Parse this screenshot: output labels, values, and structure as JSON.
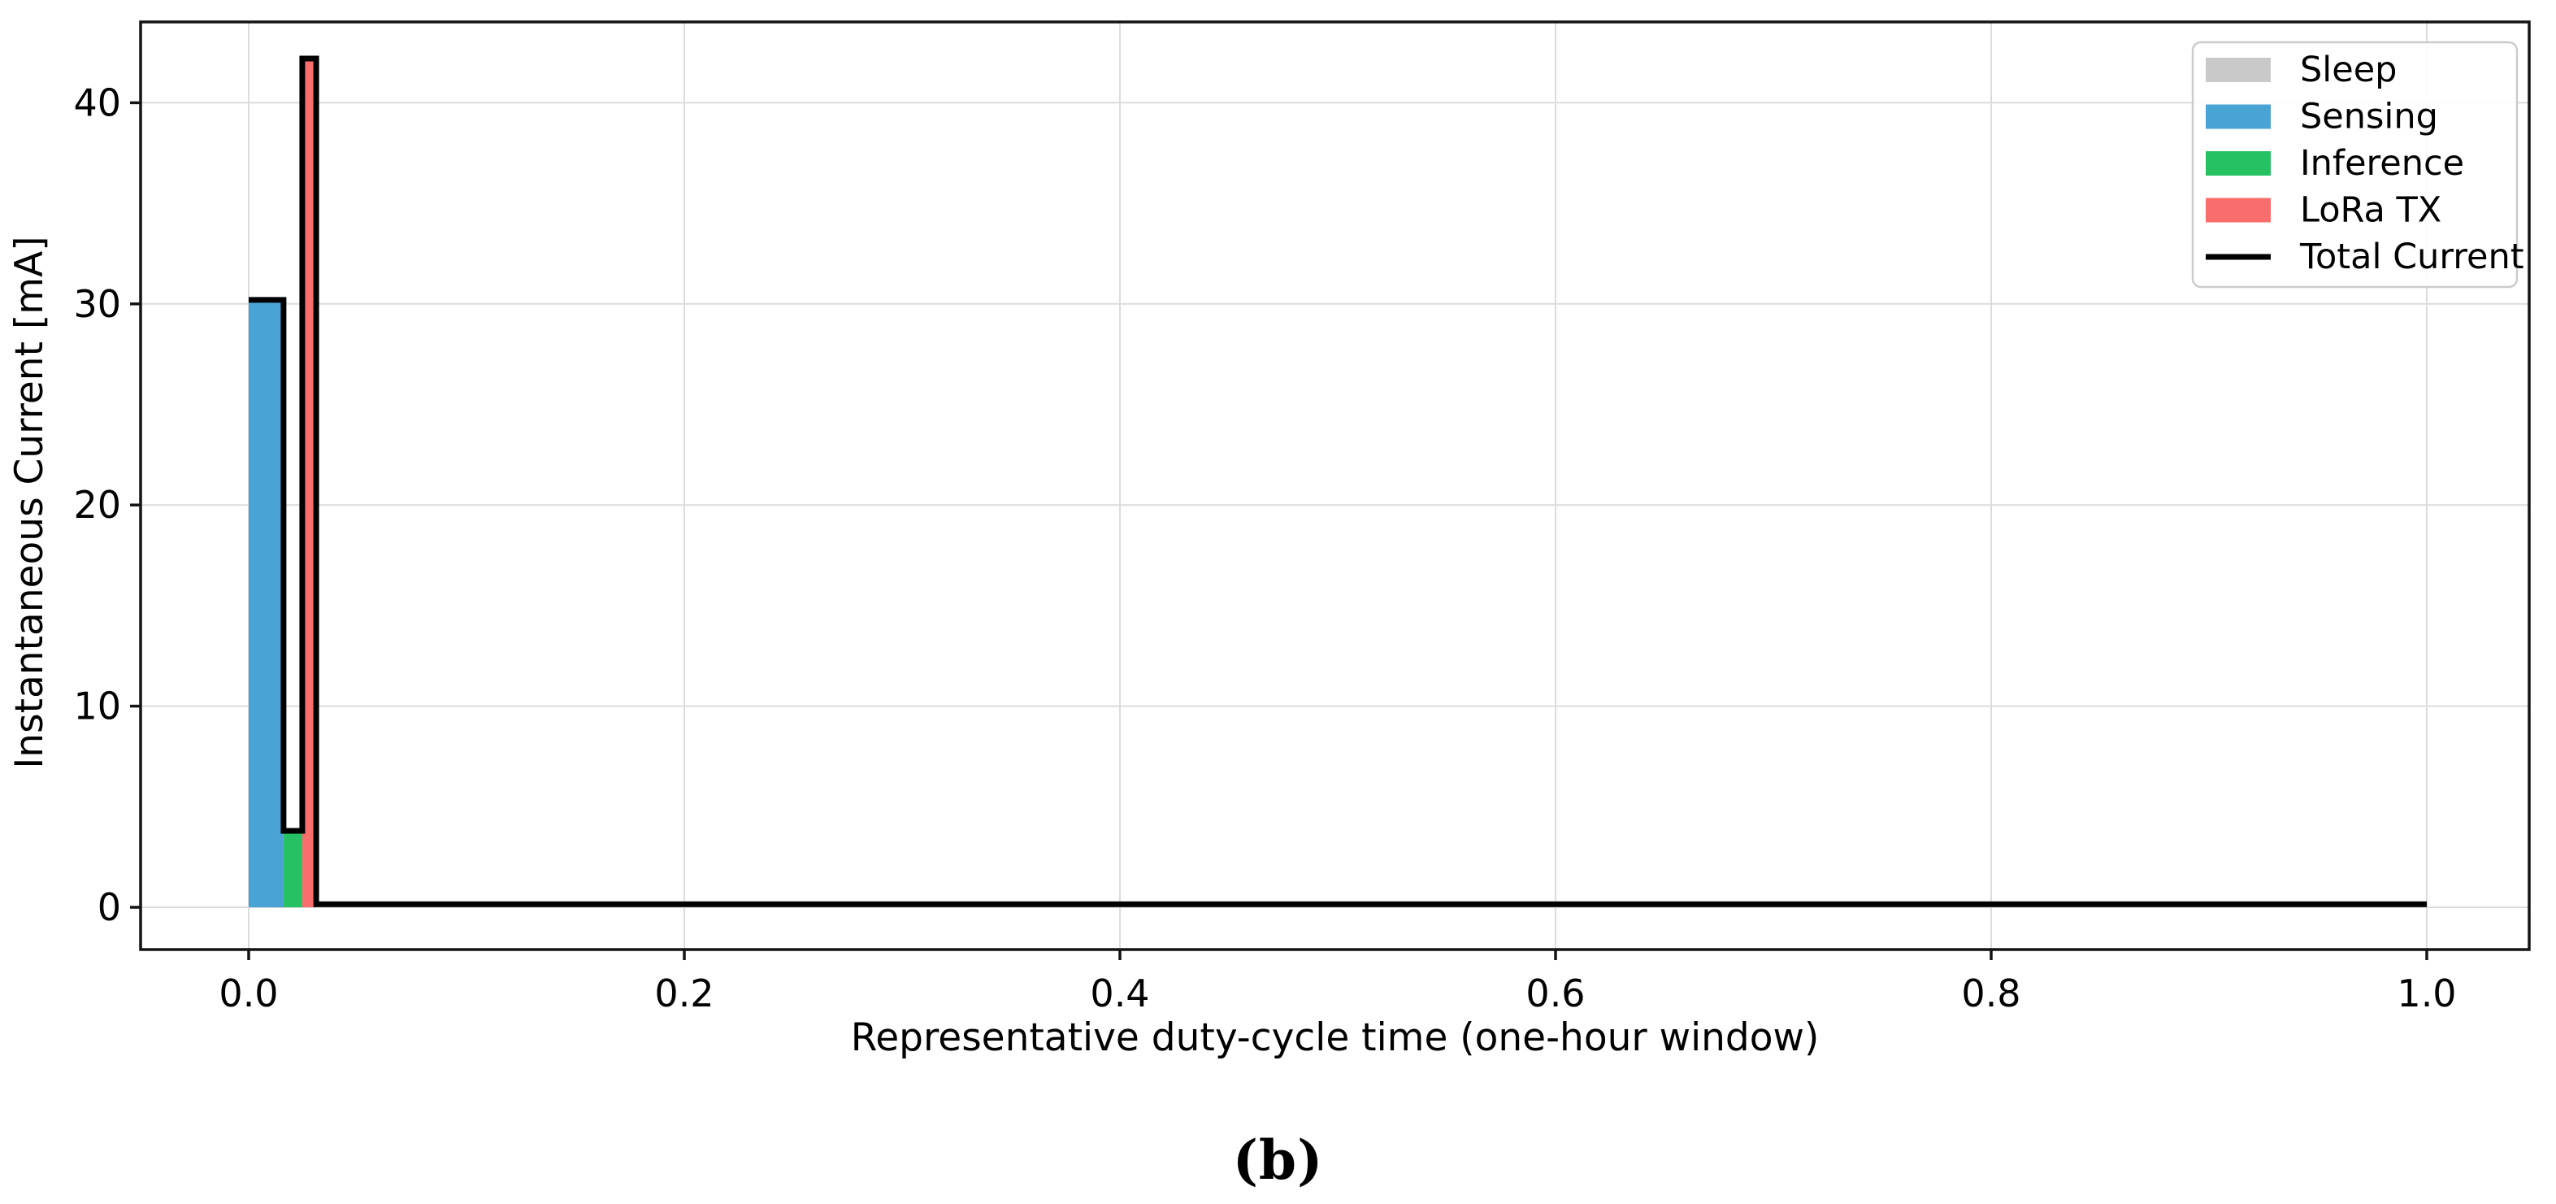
{
  "figure": {
    "caption": "(b)"
  },
  "chart_data": {
    "type": "bar",
    "subtype": "phase-pulse-bars-with-step-line",
    "title": "",
    "xlabel": "Representative duty-cycle time (one-hour window)",
    "ylabel": "Instantaneous Current [mA]",
    "xlim": [
      -0.05,
      1.047
    ],
    "ylim": [
      -2.1,
      44.0
    ],
    "x_ticks": [
      0.0,
      0.2,
      0.4,
      0.6,
      0.8,
      1.0
    ],
    "x_tick_labels": [
      "0.0",
      "0.2",
      "0.4",
      "0.6",
      "0.8",
      "1.0"
    ],
    "y_ticks": [
      0,
      10,
      20,
      30,
      40
    ],
    "y_tick_labels": [
      "0",
      "10",
      "20",
      "30",
      "40"
    ],
    "grid": true,
    "grid_color": "#dcdcdc",
    "spine_color": "#141414",
    "bars": [
      {
        "name": "Sleep",
        "x_start": 0.0,
        "x_end": 1.0,
        "value_mA": 0.15,
        "color": "#c9c9c9"
      },
      {
        "name": "Sensing",
        "x_start": 0.0,
        "x_end": 0.016,
        "value_mA": 30.2,
        "color": "#4aa3d5"
      },
      {
        "name": "Inference",
        "x_start": 0.016,
        "x_end": 0.0246,
        "value_mA": 3.8,
        "color": "#25c163"
      },
      {
        "name": "LoRa TX",
        "x_start": 0.0246,
        "x_end": 0.031,
        "value_mA": 42.2,
        "color": "#fa6d6d"
      }
    ],
    "total_line": {
      "name": "Total Current",
      "color": "#000000",
      "points": [
        [
          0.0,
          30.2
        ],
        [
          0.016,
          30.2
        ],
        [
          0.016,
          3.8
        ],
        [
          0.0246,
          3.8
        ],
        [
          0.0246,
          42.2
        ],
        [
          0.031,
          42.2
        ],
        [
          0.031,
          0.15
        ],
        [
          1.0,
          0.15
        ]
      ]
    },
    "legend": {
      "position": "upper right",
      "entries": [
        {
          "label": "Sleep",
          "type": "patch",
          "color": "#c9c9c9"
        },
        {
          "label": "Sensing",
          "type": "patch",
          "color": "#4aa3d5"
        },
        {
          "label": "Inference",
          "type": "patch",
          "color": "#25c163"
        },
        {
          "label": "LoRa TX",
          "type": "patch",
          "color": "#fa6d6d"
        },
        {
          "label": "Total Current",
          "type": "line",
          "color": "#000000"
        }
      ]
    }
  }
}
